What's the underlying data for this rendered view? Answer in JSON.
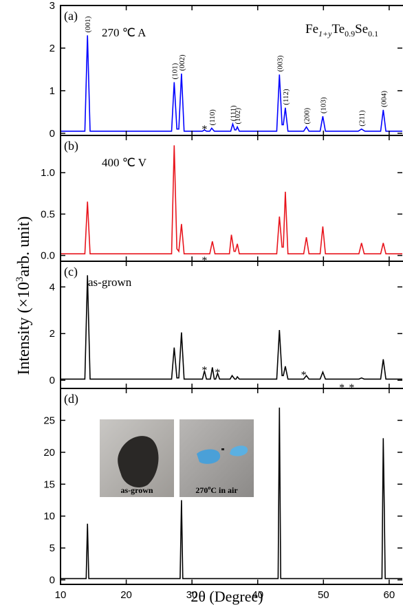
{
  "ylabel": [
    "Intensity (×10",
    "3",
    "arb. unit)"
  ],
  "chart_data": [
    {
      "type": "line",
      "label": "(a)",
      "sample": "270 ℃ A",
      "formula": [
        "Fe",
        "1+y",
        "Te",
        "0.9",
        "Se",
        "0.1"
      ],
      "xlim": [
        10,
        62
      ],
      "xticks": [
        10,
        20,
        30,
        40,
        50,
        60
      ],
      "ylim": [
        -0.05,
        3
      ],
      "yticks": [
        0,
        1,
        2,
        3
      ],
      "series": [
        {
          "color": "#0000ff",
          "x": [
            10,
            13.7,
            14.1,
            14.5,
            26.9,
            27.3,
            27.7,
            28.0,
            28.4,
            28.8,
            31.6,
            31.9,
            32.2,
            32.7,
            33.0,
            33.4,
            35.9,
            36.2,
            36.5,
            36.7,
            36.9,
            37.2,
            42.9,
            43.3,
            43.7,
            43.9,
            44.2,
            44.6,
            47.0,
            47.4,
            47.8,
            49.5,
            49.9,
            50.3,
            55.3,
            55.8,
            56.3,
            58.7,
            59.1,
            59.5,
            62
          ],
          "values": [
            0.05,
            0.05,
            2.3,
            0.05,
            0.05,
            1.2,
            0.1,
            0.1,
            1.4,
            0.05,
            0.05,
            0.08,
            0.05,
            0.05,
            0.12,
            0.05,
            0.05,
            0.22,
            0.08,
            0.08,
            0.15,
            0.05,
            0.05,
            1.38,
            0.2,
            0.2,
            0.6,
            0.05,
            0.05,
            0.15,
            0.05,
            0.05,
            0.4,
            0.05,
            0.05,
            0.1,
            0.05,
            0.05,
            0.55,
            0.05,
            0.05
          ]
        }
      ],
      "annotations": [
        {
          "label": "(001)",
          "x": 14.1
        },
        {
          "label": "(101)",
          "x": 27.3
        },
        {
          "label": "(002)",
          "x": 28.4
        },
        {
          "label": "*",
          "x": 31.9
        },
        {
          "label": "(110)",
          "x": 33.0
        },
        {
          "label": "(111)",
          "x": 36.2
        },
        {
          "label": "(102)",
          "x": 36.9
        },
        {
          "label": "(003)",
          "x": 43.3
        },
        {
          "label": "(112)",
          "x": 44.2
        },
        {
          "label": "(200)",
          "x": 47.4
        },
        {
          "label": "(103)",
          "x": 49.9
        },
        {
          "label": "(211)",
          "x": 55.8
        },
        {
          "label": "(004)",
          "x": 59.1
        }
      ]
    },
    {
      "type": "line",
      "label": "(b)",
      "sample": "400 ℃ V",
      "xlim": [
        10,
        62
      ],
      "xticks": [
        10,
        20,
        30,
        40,
        50,
        60
      ],
      "ylim": [
        -0.07,
        1.45
      ],
      "yticks": [
        {
          "value": 0,
          "label": "0.0"
        },
        0.5,
        {
          "value": 1,
          "label": "1.0"
        }
      ],
      "series": [
        {
          "color": "#e8141c",
          "x": [
            10,
            13.7,
            14.1,
            14.5,
            26.9,
            27.3,
            27.7,
            28.0,
            28.4,
            28.8,
            32.7,
            33.1,
            33.5,
            35.7,
            36.0,
            36.4,
            36.6,
            36.9,
            37.2,
            42.9,
            43.3,
            43.7,
            43.9,
            44.2,
            44.6,
            47.0,
            47.4,
            47.8,
            49.5,
            49.9,
            50.3,
            55.4,
            55.8,
            56.2,
            58.7,
            59.1,
            59.5,
            62
          ],
          "values": [
            0.02,
            0.02,
            0.65,
            0.02,
            0.02,
            1.33,
            0.08,
            0.05,
            0.38,
            0.02,
            0.02,
            0.17,
            0.02,
            0.02,
            0.25,
            0.05,
            0.05,
            0.14,
            0.02,
            0.02,
            0.47,
            0.1,
            0.1,
            0.77,
            0.02,
            0.02,
            0.22,
            0.02,
            0.02,
            0.35,
            0.02,
            0.02,
            0.15,
            0.02,
            0.02,
            0.15,
            0.02,
            0.02
          ]
        }
      ],
      "annotations": [
        {
          "label": "*",
          "x": 31.9
        }
      ]
    },
    {
      "type": "line",
      "label": "(c)",
      "sample": "as-grown",
      "xlim": [
        10,
        62
      ],
      "xticks": [
        10,
        20,
        30,
        40,
        50,
        60
      ],
      "ylim": [
        -0.35,
        5.1
      ],
      "yticks": [
        0,
        2,
        4
      ],
      "series": [
        {
          "color": "#000000",
          "x": [
            10,
            13.7,
            14.1,
            14.5,
            26.9,
            27.3,
            27.7,
            28.0,
            28.4,
            28.8,
            31.6,
            31.9,
            32.2,
            32.8,
            33.1,
            33.4,
            33.6,
            33.9,
            34.2,
            35.8,
            36.1,
            36.5,
            36.7,
            36.9,
            37.2,
            42.9,
            43.3,
            43.7,
            43.9,
            44.2,
            44.6,
            47.0,
            47.4,
            47.8,
            49.5,
            49.9,
            50.3,
            55.4,
            55.8,
            56.2,
            58.7,
            59.1,
            59.5,
            62
          ],
          "values": [
            0.05,
            0.05,
            4.5,
            0.05,
            0.05,
            1.4,
            0.1,
            0.1,
            2.05,
            0.05,
            0.05,
            0.4,
            0.05,
            0.05,
            0.55,
            0.05,
            0.05,
            0.3,
            0.05,
            0.05,
            0.2,
            0.05,
            0.05,
            0.15,
            0.05,
            0.05,
            2.15,
            0.2,
            0.2,
            0.6,
            0.05,
            0.05,
            0.2,
            0.05,
            0.05,
            0.35,
            0.05,
            0.05,
            0.1,
            0.05,
            0.05,
            0.9,
            0.05,
            0.05
          ]
        }
      ],
      "annotations": [
        {
          "label": "*",
          "x": 31.9
        },
        {
          "label": "*",
          "x": 33.9
        },
        {
          "label": "*",
          "x": 47.0
        },
        {
          "label": "*",
          "x": 52.8
        },
        {
          "label": "*",
          "x": 54.3
        }
      ]
    },
    {
      "type": "line",
      "label": "(d)",
      "xlabel": "2θ (Degree)",
      "xlim": [
        10,
        62
      ],
      "xticks": [
        10,
        20,
        30,
        40,
        50,
        60
      ],
      "ylim": [
        -0.7,
        30
      ],
      "yticks": [
        0,
        5,
        10,
        15,
        20,
        25
      ],
      "series": [
        {
          "color": "#000000",
          "x": [
            10,
            13.9,
            14.1,
            14.3,
            28.2,
            28.4,
            28.6,
            43.1,
            43.3,
            43.5,
            58.9,
            59.1,
            59.25,
            59.4,
            62
          ],
          "values": [
            0.2,
            0.2,
            8.8,
            0.2,
            0.2,
            12.5,
            0.2,
            0.2,
            27,
            0.2,
            0.2,
            22.2,
            12,
            0.2,
            0.2
          ]
        }
      ],
      "annotations": [],
      "insets": [
        [
          "as-grown"
        ],
        [
          "270",
          "o",
          "C in air"
        ]
      ]
    }
  ]
}
